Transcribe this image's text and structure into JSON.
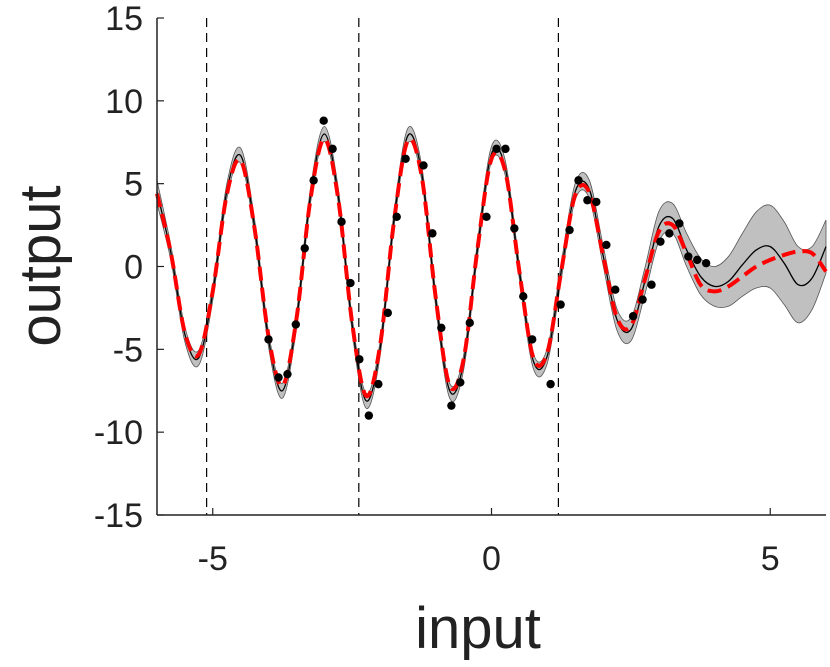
{
  "chart_data": {
    "type": "line",
    "xlabel": "input",
    "ylabel": "output",
    "xlim": [
      -6,
      6
    ],
    "ylim": [
      -15,
      15
    ],
    "xticks": [
      -5,
      0,
      5
    ],
    "yticks": [
      -15,
      -10,
      -5,
      0,
      5,
      10,
      15
    ],
    "x": [
      -6,
      -5.75,
      -5.5,
      -5.25,
      -5,
      -4.75,
      -4.5,
      -4.25,
      -4,
      -3.75,
      -3.5,
      -3.25,
      -3,
      -2.75,
      -2.5,
      -2.25,
      -2,
      -1.75,
      -1.5,
      -1.25,
      -1,
      -0.75,
      -0.5,
      -0.25,
      0,
      0.25,
      0.5,
      0.75,
      1,
      1.25,
      1.5,
      1.75,
      2,
      2.25,
      2.5,
      2.75,
      3,
      3.25,
      3.5,
      3.75,
      4,
      4.25,
      4.5,
      4.75,
      5,
      5.25,
      5.5,
      5.75,
      6
    ],
    "band": {
      "color": "#c0c0c0",
      "upper": [
        5.2,
        1.25,
        -3.65,
        -5.05,
        -1.15,
        4.95,
        7.15,
        2.85,
        -3.95,
        -7.05,
        -2.85,
        4.65,
        8.45,
        4.75,
        -3.05,
        -7.65,
        -4.55,
        3.25,
        8.35,
        6.05,
        -1.55,
        -7.05,
        -5.35,
        1.55,
        7.25,
        6.35,
        0.15,
        -5.25,
        -4.95,
        0.2,
        5.0,
        5.25,
        1.3,
        -2.55,
        -3.1,
        -0.1,
        3.3,
        3.8,
        2.0,
        0.5,
        0.0,
        0.6,
        2.0,
        3.3,
        3.7,
        2.7,
        1.2,
        1.2,
        2.8
      ],
      "lower": [
        3.8,
        0.35,
        -4.55,
        -5.95,
        -2.05,
        4.05,
        6.25,
        1.95,
        -4.85,
        -7.95,
        -3.75,
        3.75,
        7.55,
        3.85,
        -3.95,
        -8.55,
        -5.45,
        2.35,
        7.45,
        5.15,
        -2.45,
        -7.95,
        -6.25,
        0.65,
        6.35,
        5.45,
        -0.75,
        -6.15,
        -5.85,
        -0.8,
        4.0,
        4.15,
        0.1,
        -3.85,
        -4.5,
        -1.7,
        1.5,
        2.0,
        0.0,
        -1.7,
        -2.4,
        -2.4,
        -1.8,
        -1.3,
        -1.3,
        -2.3,
        -3.4,
        -2.6,
        -0.4
      ]
    },
    "lines": [
      {
        "color": "#000000",
        "dashed": false,
        "values": [
          4.5,
          0.8,
          -4.1,
          -5.5,
          -1.6,
          4.5,
          6.7,
          2.4,
          -4.4,
          -7.5,
          -3.3,
          4.2,
          8.0,
          4.3,
          -3.5,
          -8.1,
          -5.0,
          2.8,
          7.9,
          5.6,
          -2.0,
          -7.5,
          -5.8,
          1.1,
          6.8,
          5.9,
          -0.3,
          -5.7,
          -5.4,
          -0.3,
          4.5,
          4.7,
          0.7,
          -3.2,
          -3.8,
          -0.9,
          2.4,
          2.9,
          1.0,
          -0.6,
          -1.2,
          -0.9,
          0.1,
          1.0,
          1.2,
          0.2,
          -1.1,
          -0.7,
          1.2
        ]
      },
      {
        "color": "#ff0000",
        "dashed": true,
        "values": [
          4.4,
          0.8,
          -4.0,
          -5.3,
          -1.5,
          4.3,
          6.4,
          2.3,
          -4.2,
          -7.2,
          -3.2,
          4.0,
          7.7,
          4.1,
          -3.4,
          -7.8,
          -4.8,
          2.7,
          7.6,
          5.4,
          -1.9,
          -7.2,
          -5.6,
          1.1,
          6.5,
          5.7,
          -0.3,
          -5.5,
          -5.2,
          -0.3,
          4.3,
          4.5,
          0.7,
          -3.1,
          -3.6,
          -0.8,
          2.1,
          2.5,
          0.8,
          -1.1,
          -1.5,
          -1.2,
          -0.6,
          0,
          0.4,
          0.7,
          0.9,
          0.8,
          -0.3
        ]
      }
    ],
    "points": {
      "color": "#000000",
      "x": [
        -4.0,
        -3.82,
        -3.66,
        -3.51,
        -3.35,
        -3.19,
        -3.01,
        -2.85,
        -2.69,
        -2.53,
        -2.37,
        -2.2,
        -2.03,
        -1.86,
        -1.7,
        -1.54,
        -1.22,
        -1.06,
        -0.9,
        -0.72,
        -0.56,
        -0.39,
        -0.09,
        0.09,
        0.25,
        0.41,
        0.57,
        0.73,
        1.06,
        1.24,
        1.4,
        1.56,
        1.72,
        1.88,
        2.06,
        2.22,
        2.54,
        2.71,
        2.87,
        3.03,
        3.19,
        3.37,
        3.53,
        3.69,
        3.85
      ],
      "y": [
        -4.4,
        -6.7,
        -6.5,
        -3.5,
        1.1,
        5.2,
        8.8,
        7.1,
        2.7,
        -1.0,
        -5.6,
        -9.0,
        -7.1,
        -2.8,
        3.0,
        6.5,
        6.1,
        2.0,
        -3.7,
        -8.4,
        -7.0,
        -3.4,
        3.0,
        7.1,
        7.1,
        2.3,
        -1.8,
        -4.4,
        -7.1,
        -2.3,
        2.2,
        5.2,
        4.0,
        3.9,
        1.3,
        -1.4,
        -3.0,
        -2.0,
        -1.1,
        1.5,
        2.0,
        2.6,
        0.6,
        0.4,
        0.2
      ]
    },
    "vlines": [
      -5.11,
      -2.38,
      1.2
    ]
  }
}
